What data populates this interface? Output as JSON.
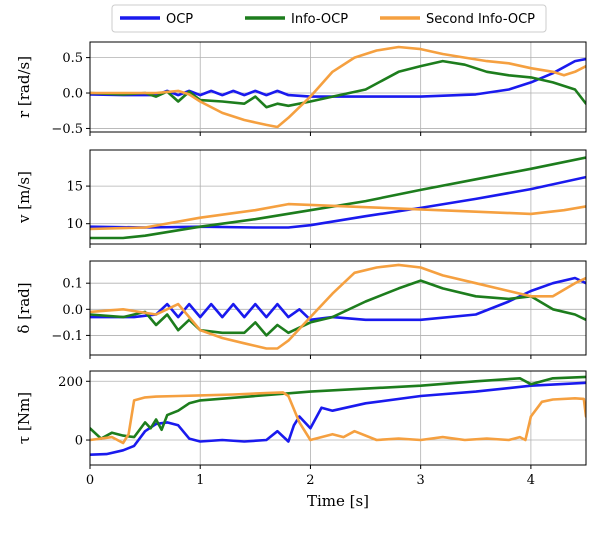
{
  "legend": {
    "location": "top-center",
    "entries": [
      {
        "name": "OCP",
        "color": "#1a1aee"
      },
      {
        "name": "Info-OCP",
        "color": "#1d7d1d"
      },
      {
        "name": "Second Info-OCP",
        "color": "#f5a040"
      }
    ]
  },
  "chart_data": [
    {
      "type": "line",
      "ylabel": "r [rad/s]",
      "xlim": [
        0,
        4.5
      ],
      "ylim": [
        -0.55,
        0.72
      ],
      "yticks": [
        -0.5,
        0.0,
        0.5
      ],
      "ytick_labels": [
        "−0.5",
        "0.0",
        "0.5"
      ],
      "grid": true,
      "series": [
        {
          "name": "OCP",
          "x": [
            0,
            0.3,
            0.6,
            0.7,
            0.8,
            0.9,
            1.0,
            1.1,
            1.2,
            1.3,
            1.4,
            1.5,
            1.6,
            1.7,
            1.8,
            2.0,
            2.5,
            3.0,
            3.5,
            3.8,
            4.0,
            4.2,
            4.4,
            4.5
          ],
          "y": [
            -0.02,
            -0.03,
            -0.03,
            0.03,
            -0.03,
            0.03,
            -0.03,
            0.03,
            -0.03,
            0.03,
            -0.03,
            0.03,
            -0.03,
            0.03,
            -0.03,
            -0.05,
            -0.05,
            -0.05,
            -0.02,
            0.05,
            0.15,
            0.28,
            0.45,
            0.48
          ]
        },
        {
          "name": "Info-OCP",
          "x": [
            0,
            0.3,
            0.5,
            0.6,
            0.7,
            0.8,
            0.9,
            1.0,
            1.2,
            1.4,
            1.5,
            1.6,
            1.7,
            1.8,
            2.0,
            2.2,
            2.5,
            2.8,
            3.0,
            3.2,
            3.4,
            3.6,
            3.8,
            4.0,
            4.2,
            4.4,
            4.5
          ],
          "y": [
            0.0,
            -0.02,
            0.0,
            -0.05,
            0.02,
            -0.12,
            0.02,
            -0.1,
            -0.12,
            -0.15,
            -0.05,
            -0.2,
            -0.15,
            -0.18,
            -0.12,
            -0.05,
            0.05,
            0.3,
            0.38,
            0.45,
            0.4,
            0.3,
            0.25,
            0.22,
            0.15,
            0.05,
            -0.15
          ]
        },
        {
          "name": "Second Info-OCP",
          "x": [
            0,
            0.3,
            0.6,
            0.8,
            0.9,
            1.0,
            1.2,
            1.4,
            1.6,
            1.7,
            1.8,
            2.0,
            2.2,
            2.4,
            2.6,
            2.8,
            3.0,
            3.2,
            3.4,
            3.6,
            3.8,
            4.0,
            4.2,
            4.3,
            4.4,
            4.5
          ],
          "y": [
            0.0,
            0.0,
            0.0,
            0.03,
            -0.02,
            -0.12,
            -0.28,
            -0.38,
            -0.45,
            -0.48,
            -0.35,
            -0.05,
            0.3,
            0.5,
            0.6,
            0.65,
            0.62,
            0.55,
            0.5,
            0.45,
            0.42,
            0.35,
            0.3,
            0.25,
            0.3,
            0.38
          ]
        }
      ]
    },
    {
      "type": "line",
      "ylabel": "v [m/s]",
      "xlim": [
        0,
        4.5
      ],
      "ylim": [
        7.3,
        19.8
      ],
      "yticks": [
        10,
        15
      ],
      "ytick_labels": [
        "10",
        "15"
      ],
      "grid": true,
      "series": [
        {
          "name": "OCP",
          "x": [
            0,
            0.5,
            1.0,
            1.5,
            1.8,
            2.0,
            2.5,
            3.0,
            3.5,
            4.0,
            4.5
          ],
          "y": [
            9.6,
            9.5,
            9.6,
            9.5,
            9.5,
            9.8,
            11.0,
            12.1,
            13.3,
            14.6,
            16.2
          ]
        },
        {
          "name": "Info-OCP",
          "x": [
            0,
            0.3,
            0.5,
            1.0,
            1.5,
            2.0,
            2.5,
            3.0,
            3.5,
            4.0,
            4.5
          ],
          "y": [
            8.1,
            8.1,
            8.4,
            9.6,
            10.6,
            11.8,
            13.0,
            14.5,
            15.9,
            17.3,
            18.8
          ]
        },
        {
          "name": "Second Info-OCP",
          "x": [
            0,
            0.5,
            1.0,
            1.5,
            1.8,
            2.0,
            2.5,
            3.0,
            3.5,
            4.0,
            4.3,
            4.5
          ],
          "y": [
            9.3,
            9.5,
            10.8,
            11.8,
            12.6,
            12.5,
            12.2,
            11.9,
            11.6,
            11.3,
            11.8,
            12.3
          ]
        }
      ]
    },
    {
      "type": "line",
      "ylabel": "δ [rad]",
      "xlim": [
        0,
        4.5
      ],
      "ylim": [
        -0.175,
        0.185
      ],
      "yticks": [
        -0.1,
        0.0,
        0.1
      ],
      "ytick_labels": [
        "−0.1",
        "0.0",
        "0.1"
      ],
      "grid": true,
      "series": [
        {
          "name": "OCP",
          "x": [
            0,
            0.4,
            0.6,
            0.7,
            0.8,
            0.9,
            1.0,
            1.1,
            1.2,
            1.3,
            1.4,
            1.5,
            1.6,
            1.7,
            1.8,
            1.9,
            2.0,
            2.2,
            2.5,
            3.0,
            3.5,
            3.8,
            4.0,
            4.2,
            4.4,
            4.5
          ],
          "y": [
            -0.03,
            -0.03,
            -0.02,
            0.02,
            -0.03,
            0.02,
            -0.03,
            0.02,
            -0.03,
            0.02,
            -0.03,
            0.02,
            -0.03,
            0.02,
            -0.03,
            0.0,
            -0.04,
            -0.03,
            -0.04,
            -0.04,
            -0.02,
            0.03,
            0.07,
            0.1,
            0.12,
            0.1
          ]
        },
        {
          "name": "Info-OCP",
          "x": [
            0,
            0.3,
            0.5,
            0.6,
            0.7,
            0.8,
            0.9,
            1.0,
            1.2,
            1.4,
            1.5,
            1.6,
            1.7,
            1.8,
            2.0,
            2.2,
            2.5,
            2.8,
            3.0,
            3.2,
            3.5,
            3.8,
            4.0,
            4.2,
            4.4,
            4.5
          ],
          "y": [
            -0.02,
            -0.03,
            -0.01,
            -0.06,
            -0.02,
            -0.08,
            -0.04,
            -0.08,
            -0.09,
            -0.09,
            -0.05,
            -0.1,
            -0.06,
            -0.09,
            -0.05,
            -0.03,
            0.03,
            0.08,
            0.11,
            0.08,
            0.05,
            0.04,
            0.05,
            0.0,
            -0.02,
            -0.04
          ]
        },
        {
          "name": "Second Info-OCP",
          "x": [
            0,
            0.3,
            0.6,
            0.8,
            0.9,
            1.0,
            1.2,
            1.4,
            1.6,
            1.7,
            1.8,
            2.0,
            2.2,
            2.4,
            2.6,
            2.8,
            3.0,
            3.2,
            3.5,
            3.8,
            4.0,
            4.2,
            4.4,
            4.5
          ],
          "y": [
            -0.01,
            0.0,
            -0.02,
            0.02,
            -0.03,
            -0.08,
            -0.11,
            -0.13,
            -0.15,
            -0.15,
            -0.12,
            -0.03,
            0.06,
            0.14,
            0.16,
            0.17,
            0.16,
            0.13,
            0.1,
            0.07,
            0.05,
            0.05,
            0.1,
            0.12
          ]
        }
      ]
    },
    {
      "type": "line",
      "ylabel": "τ [Nm]",
      "xlabel": "Time [s]",
      "xlim": [
        0,
        4.5
      ],
      "ylim": [
        -85,
        235
      ],
      "xticks": [
        0,
        1,
        2,
        3,
        4
      ],
      "xtick_labels": [
        "0",
        "1",
        "2",
        "3",
        "4"
      ],
      "yticks": [
        0,
        200
      ],
      "ytick_labels": [
        "0",
        "200"
      ],
      "grid": true,
      "series": [
        {
          "name": "OCP",
          "x": [
            0,
            0.15,
            0.3,
            0.4,
            0.5,
            0.6,
            0.7,
            0.8,
            0.9,
            1.0,
            1.2,
            1.4,
            1.6,
            1.7,
            1.8,
            1.85,
            1.9,
            2.0,
            2.1,
            2.2,
            2.5,
            3.0,
            3.5,
            4.0,
            4.5
          ],
          "y": [
            -50,
            -48,
            -35,
            -20,
            30,
            55,
            60,
            50,
            5,
            -5,
            0,
            -5,
            0,
            30,
            -5,
            50,
            80,
            40,
            110,
            100,
            125,
            150,
            165,
            185,
            195
          ]
        },
        {
          "name": "Info-OCP",
          "x": [
            0,
            0.1,
            0.2,
            0.3,
            0.4,
            0.5,
            0.55,
            0.6,
            0.65,
            0.7,
            0.8,
            0.9,
            1.0,
            1.5,
            2.0,
            2.5,
            3.0,
            3.5,
            3.9,
            4.0,
            4.2,
            4.5
          ],
          "y": [
            40,
            5,
            25,
            15,
            10,
            60,
            40,
            70,
            35,
            85,
            100,
            125,
            135,
            150,
            165,
            175,
            185,
            200,
            210,
            190,
            210,
            215
          ]
        },
        {
          "name": "Second Info-OCP",
          "x": [
            0,
            0.1,
            0.2,
            0.3,
            0.35,
            0.4,
            0.5,
            0.6,
            0.8,
            1.0,
            1.3,
            1.6,
            1.75,
            1.8,
            1.9,
            2.0,
            2.2,
            2.3,
            2.4,
            2.6,
            2.8,
            3.0,
            3.2,
            3.4,
            3.6,
            3.8,
            3.9,
            3.95,
            4.0,
            4.1,
            4.2,
            4.4,
            4.48,
            4.5
          ],
          "y": [
            0,
            5,
            10,
            -10,
            20,
            135,
            145,
            148,
            150,
            152,
            155,
            160,
            162,
            150,
            60,
            0,
            20,
            10,
            30,
            0,
            5,
            0,
            10,
            0,
            5,
            0,
            10,
            0,
            80,
            130,
            138,
            142,
            140,
            80
          ]
        }
      ]
    }
  ]
}
